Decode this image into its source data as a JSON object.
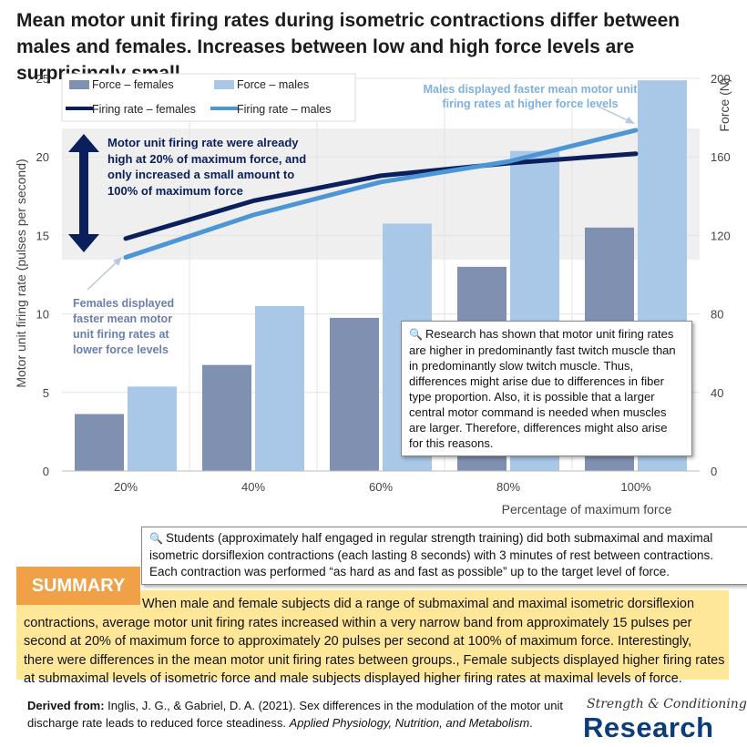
{
  "title": "Mean motor unit firing rates during isometric contractions differ between males and females. Increases between low and high force levels are surprisingly small.",
  "chart_data": {
    "type": "bar",
    "categories": [
      "20%",
      "40%",
      "60%",
      "80%",
      "100%"
    ],
    "xlabel": "Percentage of maximum force",
    "ylabel": "Motor unit firing rate (pulses per second)",
    "y2label": "Force (N)",
    "ylim": [
      0,
      25
    ],
    "y2lim": [
      0,
      200
    ],
    "yticks": [
      "0",
      "5",
      "10",
      "15",
      "20",
      "25"
    ],
    "y2ticks": [
      "0",
      "40",
      "80",
      "120",
      "160",
      "200"
    ],
    "bar_series": [
      {
        "name": "Force – females",
        "axis": "right",
        "color": "#8090b0",
        "values": [
          29,
          54,
          78,
          104,
          124
        ]
      },
      {
        "name": "Force – males",
        "axis": "right",
        "color": "#a9c8e8",
        "values": [
          43,
          84,
          126,
          163,
          199
        ]
      }
    ],
    "line_series": [
      {
        "name": "Firing rate – females",
        "axis": "left",
        "color": "#0a1f5c",
        "values": [
          14.8,
          17.2,
          18.8,
          19.6,
          20.2
        ]
      },
      {
        "name": "Firing rate – males",
        "axis": "left",
        "color": "#4d96d6",
        "values": [
          13.6,
          16.3,
          18.4,
          19.7,
          21.7
        ]
      }
    ],
    "legend_position": "top-left",
    "grid": true
  },
  "annotations": {
    "arrow_note": "Motor unit firing rate were already high at 20% of maximum force, and only increased a small amount to 100% of maximum force",
    "males_note": "Males displayed faster mean motor unit firing rates at higher force levels",
    "females_note": "Females displayed faster mean motor unit firing rates at lower force levels",
    "research_note": "Research has shown that motor unit firing rates are higher in predominantly fast twitch muscle than in predominantly slow twitch muscle. Thus, differences might arise due to differences in fiber type proportion. Also, it is possible that a larger central motor command is needed when muscles are larger. Therefore, differences might also arise for this reasons.",
    "students_note": "Students (approximately half engaged in regular strength training) did both submaximal and maximal isometric dorsiflexion contractions (each lasting 8 seconds) with 3 minutes of rest between contractions. Each contraction was performed “as hard as and fast as possible” up to the target level of force.",
    "icon": "magnifier-icon"
  },
  "summary": {
    "label": "SUMMARY",
    "text": "When male and female subjects did a range of submaximal and maximal isometric dorsiflexion contractions, average motor unit firing rates increased within a very narrow band from approximately 15 pulses per second at 20% of maximum force to approximately 20 pulses per second at 100% of maximum force. Interestingly, there were differences in the mean motor unit firing rates between groups., Female subjects displayed higher firing rates at submaximal levels of isometric force and male subjects displayed higher firing rates at maximal levels of force."
  },
  "footer": {
    "derived_label": "Derived from:",
    "citation_pre": "Inglis, J. G., & Gabriel, D. A. (2021). Sex differences in the modulation of the motor unit discharge rate leads to reduced force steadiness.",
    "citation_journal": "Applied Physiology, Nutrition, and Metabolism",
    "citation_post": "."
  },
  "brand": {
    "top": "Strength & Conditioning",
    "main": "Research"
  }
}
